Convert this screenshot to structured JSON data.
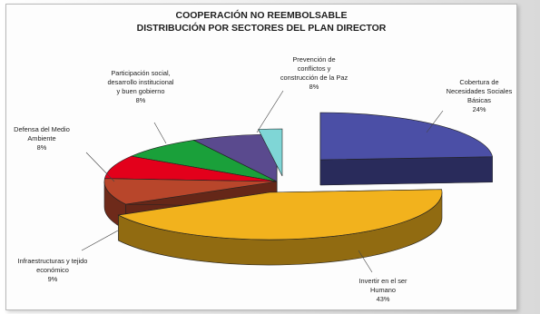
{
  "chart_data": {
    "type": "pie",
    "title_line1": "COOPERACIÓN NO REEMBOLSABLE",
    "title_line2": "DISTRIBUCIÓN POR SECTORES DEL PLAN DIRECTOR",
    "slices": [
      {
        "label_lines": [
          "Cobertura de",
          "Necesidades Sociales",
          "Básicas"
        ],
        "value_text": "24%",
        "value": 24,
        "color": "#4b4fa6"
      },
      {
        "label_lines": [
          "Invertir en el ser",
          "Humano"
        ],
        "value_text": "43%",
        "value": 43,
        "color": "#f2b21d"
      },
      {
        "label_lines": [
          "Infraestructuras y tejido",
          "económico"
        ],
        "value_text": "9%",
        "value": 9,
        "color": "#b8462b"
      },
      {
        "label_lines": [
          "Defensa del Medio",
          "Ambiente"
        ],
        "value_text": "8%",
        "value": 8,
        "color": "#e3001b"
      },
      {
        "label_lines": [
          "Participación social,",
          "desarrollo institucional",
          "y buen gobierno"
        ],
        "value_text": "8%",
        "value": 8,
        "color": "#1aa03a"
      },
      {
        "label_lines": [
          "Prevención de",
          "conflictos y",
          "construcción de la Paz"
        ],
        "value_text": "8%",
        "value": 8,
        "color": "#5a4a8e"
      }
    ],
    "extra_slice_color": "#7fd6d6",
    "exploded": [
      0,
      1
    ],
    "legend": "none"
  }
}
